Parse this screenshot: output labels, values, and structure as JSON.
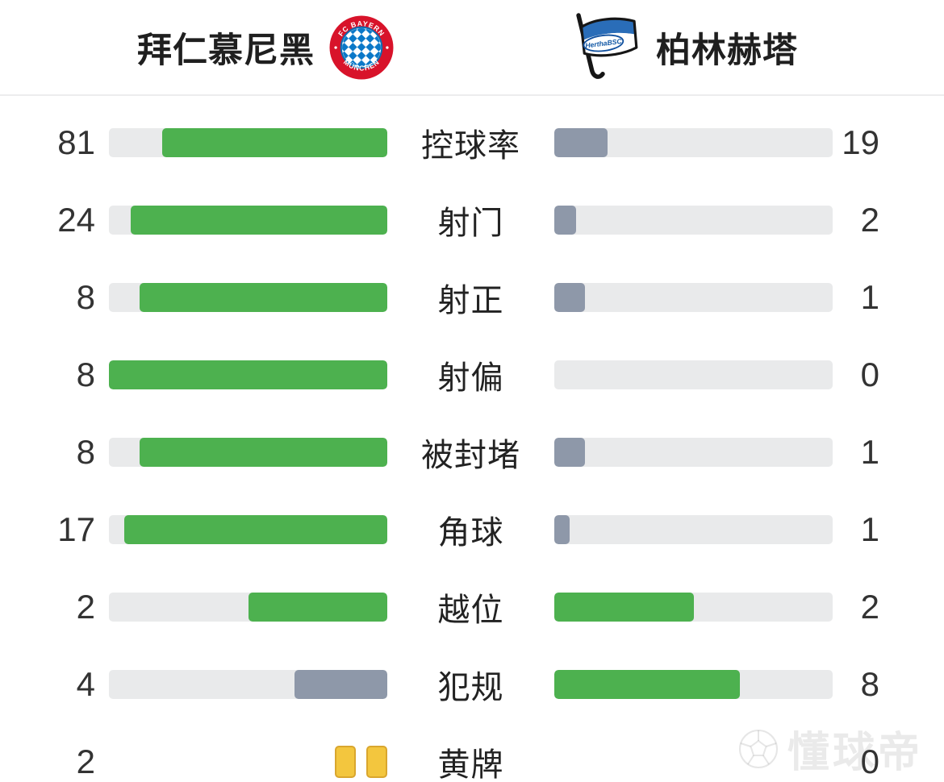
{
  "header": {
    "home": {
      "name": "拜仁慕尼黑",
      "logo": "fc-bayern-crest"
    },
    "away": {
      "name": "柏林赫塔",
      "logo": "hertha-bsc-flag"
    }
  },
  "rows": [
    {
      "label": "控球率",
      "kind": "bar",
      "home": {
        "value": 81
      },
      "away": {
        "value": 19
      }
    },
    {
      "label": "射门",
      "kind": "bar",
      "home": {
        "value": 24
      },
      "away": {
        "value": 2
      }
    },
    {
      "label": "射正",
      "kind": "bar",
      "home": {
        "value": 8
      },
      "away": {
        "value": 1
      }
    },
    {
      "label": "射偏",
      "kind": "bar",
      "home": {
        "value": 8
      },
      "away": {
        "value": 0
      }
    },
    {
      "label": "被封堵",
      "kind": "bar",
      "home": {
        "value": 8
      },
      "away": {
        "value": 1
      }
    },
    {
      "label": "角球",
      "kind": "bar",
      "home": {
        "value": 17
      },
      "away": {
        "value": 1
      }
    },
    {
      "label": "越位",
      "kind": "bar",
      "home": {
        "value": 2
      },
      "away": {
        "value": 2
      }
    },
    {
      "label": "犯规",
      "kind": "bar",
      "home": {
        "value": 4
      },
      "away": {
        "value": 8
      }
    },
    {
      "label": "黄牌",
      "kind": "cards",
      "home": {
        "value": 2
      },
      "away": {
        "value": 0
      }
    }
  ],
  "colors": {
    "winner_fill": "#4db14f",
    "loser_fill": "#8e98a9",
    "track": "#e9eaeb",
    "yellow_card": "#f3c63e",
    "yellow_card_border": "#d9a62e",
    "bayern_red": "#d8132a",
    "bayern_blue": "#0a78c8",
    "hertha_blue": "#2a6db8"
  },
  "watermark": {
    "text": "懂球帝",
    "icon": "football-icon"
  },
  "chart_data": {
    "type": "bar",
    "orientation": "paired-horizontal",
    "categories": [
      "控球率",
      "射门",
      "射正",
      "射偏",
      "被封堵",
      "角球",
      "越位",
      "犯规",
      "黄牌"
    ],
    "series": [
      {
        "name": "拜仁慕尼黑",
        "values": [
          81,
          24,
          8,
          8,
          8,
          17,
          2,
          4,
          2
        ]
      },
      {
        "name": "柏林赫塔",
        "values": [
          19,
          2,
          1,
          0,
          1,
          1,
          2,
          8,
          0
        ]
      }
    ],
    "layout_hints": {
      "fill_rule": "each bar fill width = value / (home+away) of that category",
      "color_rule": "higher (or tied) side green #4db14f, lower side slate-gray #8e98a9, zero = empty track",
      "last_category_rendered_as": "yellow card icons instead of bars",
      "home_bars_anchored": "right",
      "away_bars_anchored": "left",
      "grid": false,
      "legend_position": "top (team names with club crests)"
    }
  }
}
